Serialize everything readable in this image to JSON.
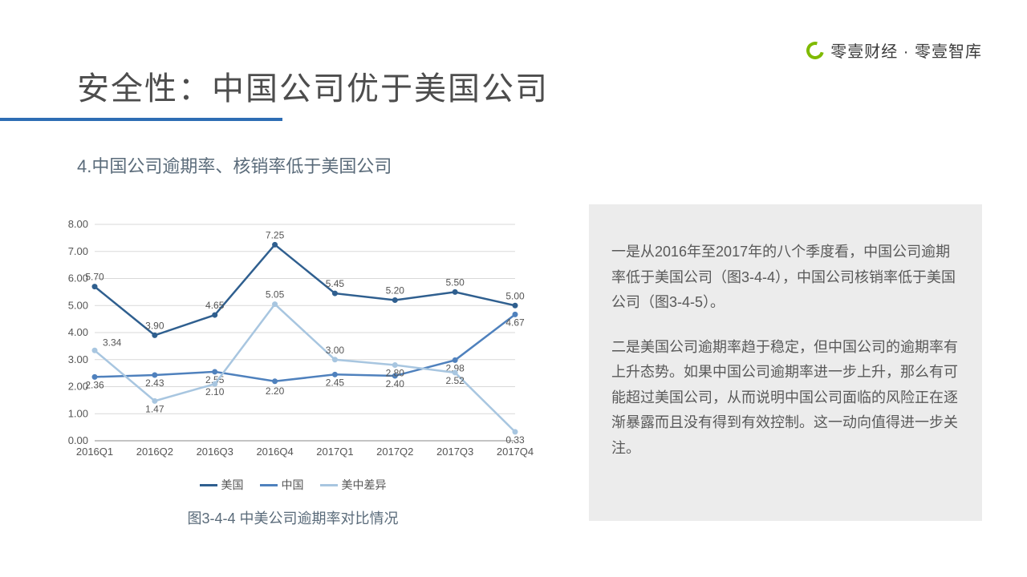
{
  "brand": {
    "text": "零壹财经 · 零壹智库"
  },
  "title": "安全性：中国公司优于美国公司",
  "subtitle": "4.中国公司逾期率、核销率低于美国公司",
  "chart": {
    "type": "line",
    "categories": [
      "2016Q1",
      "2016Q2",
      "2016Q3",
      "2016Q4",
      "2017Q1",
      "2017Q2",
      "2017Q3",
      "2017Q4"
    ],
    "series": [
      {
        "name": "美国",
        "color": "#2f5f8f",
        "values": [
          5.7,
          3.9,
          4.65,
          7.25,
          5.45,
          5.2,
          5.5,
          5.0
        ]
      },
      {
        "name": "中国",
        "color": "#4f81bd",
        "values": [
          2.36,
          2.43,
          2.55,
          2.2,
          2.45,
          2.4,
          2.98,
          4.67
        ]
      },
      {
        "name": "美中差异",
        "color": "#a8c6e0",
        "values": [
          3.34,
          1.47,
          2.1,
          5.05,
          3.0,
          2.8,
          2.52,
          0.33
        ]
      }
    ],
    "ylim": [
      0,
      8
    ],
    "ytick_step": 1,
    "ytick_decimals": 2,
    "marker_radius": 3.5,
    "line_width": 2.5,
    "grid_color": "#d9d9d9",
    "axis_color": "#8a8a8a",
    "tick_font_size": 13,
    "label_font_size": 12,
    "label_color": "#555555",
    "background_color": "#ffffff",
    "caption": "图3-4-4 中美公司逾期率对比情况"
  },
  "sidebar": {
    "p1": "一是从2016年至2017年的八个季度看，中国公司逾期率低于美国公司（图3-4-4），中国公司核销率低于美国公司（图3-4-5）。",
    "p2": "二是美国公司逾期率趋于稳定，但中国公司的逾期率有上升态势。如果中国公司逾期率进一步上升，那么有可能超过美国公司，从而说明中国公司面临的风险正在逐渐暴露而且没有得到有效控制。这一动向值得进一步关注。"
  }
}
